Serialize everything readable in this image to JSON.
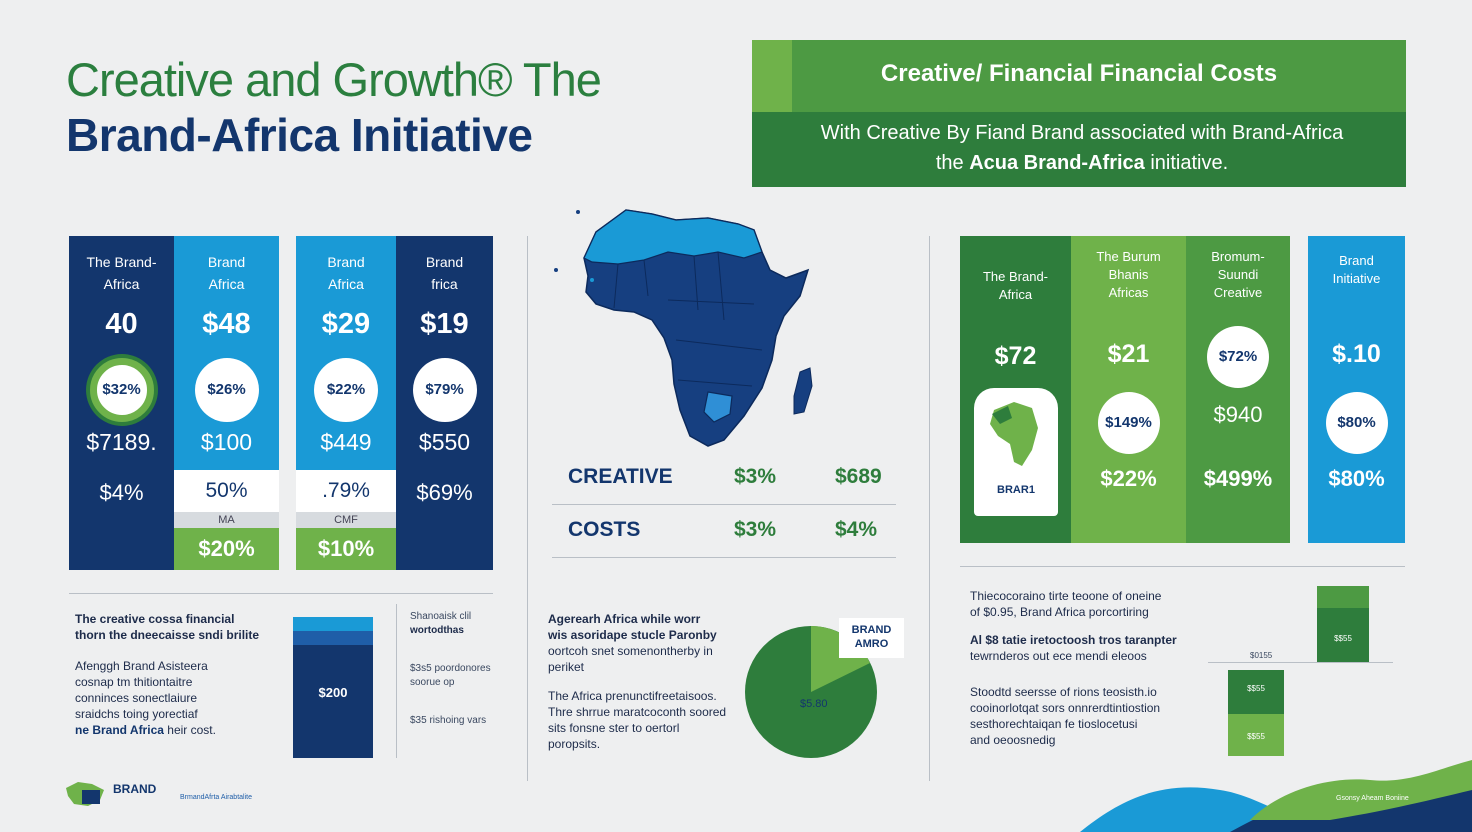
{
  "header": {
    "title_line1": "Creative and Growth® The",
    "title_line2": "Brand-Africa Initiative"
  },
  "banner": {
    "heading": "Creative/ Financial Financial Costs",
    "body_line1": "With Creative By Fiand Brand associated with Brand-Africa",
    "body_line2_pre": "the",
    "body_line2_bold": "Acua Brand-Africa",
    "body_line2_post": "initiative."
  },
  "left_columns": [
    {
      "label1": "The Brand-",
      "label2": "Africa",
      "big": "40",
      "circle": "$32%",
      "mid": "$7189.",
      "low": "$4%"
    },
    {
      "label1": "Brand",
      "label2": "Africa",
      "big": "$48",
      "circle": "$26%",
      "mid": "$100",
      "box_white": "50%",
      "box_grey": "MA",
      "box_green": "$20%"
    },
    {
      "label1": "Brand",
      "label2": "Africa",
      "big": "$29",
      "circle": "$22%",
      "mid": "$449",
      "box_white": ".79%",
      "box_grey": "CMF",
      "box_green": "$10%"
    },
    {
      "label1": "Brand",
      "label2": "frica",
      "big": "$19",
      "circle": "$79%",
      "mid": "$550",
      "low": "$69%"
    }
  ],
  "center_table": [
    {
      "label": "CREATIVE",
      "v1": "$3%",
      "v2": "$689"
    },
    {
      "label": "COSTS",
      "v1": "$3%",
      "v2": "$4%"
    }
  ],
  "right_columns": [
    {
      "label1": "The Brand-",
      "label2": "Africa",
      "big": "$72",
      "logo_text": "BRAR1"
    },
    {
      "label1": "The Burum",
      "label2": "Bhanis",
      "label3": "Africas",
      "big": "$21",
      "circle": "$149%",
      "low": "$22%"
    },
    {
      "label1": "Bromum-",
      "label2": "Suundi",
      "label3": "Creative",
      "circle": "$72%",
      "mid": "$940",
      "low": "$499%"
    },
    {
      "label1": "Brand",
      "label2": "Initiative",
      "big": "$.10",
      "circle": "$80%",
      "low": "$80%"
    }
  ],
  "bottom_left": {
    "heading1": "The creative cossa financial",
    "heading2": "thorn the dneecaisse sndi brilite",
    "para": [
      "Afenggh Brand Asisteera",
      "cosnap tm thitiontaitre",
      "conninces sonectlaiure",
      "sraidchs toing yorectiaf"
    ],
    "para_bold": "ne Brand Africa",
    "para_tail": "heir cost.",
    "bar_value": "$200",
    "side_notes": [
      "Shanoaisk clil",
      "wortodthas",
      "$3s5 poordonores",
      "soorue op",
      "$35 rishoing vars"
    ]
  },
  "bottom_center": {
    "para1": [
      "Agerearh Africa while worr",
      "wis asoridape stucle Paronby",
      "oortcoh snet somenontherby in",
      "periket"
    ],
    "para2": [
      "The Africa prenunctifreetaisoos.",
      "Thre shrrue maratcoconth soored",
      "sits fonsne ster to oertorl",
      "poropsits."
    ],
    "pie_label": "$5.80",
    "pie_badge1": "BRAND",
    "pie_badge2": "AMRO"
  },
  "bottom_right": {
    "para1": [
      "Thiecocoraino tirte teoone of oneine",
      "of $0.95, Brand Africa porcortiring"
    ],
    "para2": [
      "Al $8 tatie iretoctoosh tros taranpter",
      "tewrnderos out ece mendi eleoos"
    ],
    "para3": [
      "Stoodtd seersse of rions teosisth.io",
      "cooinorlotqat sors onnrerdtintiostion",
      "sesthorechtaiqan fe tioslocetusi",
      "and oeoosnedig"
    ],
    "bar1_label": "$$55",
    "bar1_axis": "$0155",
    "bar2_top": "$$55",
    "bar2_bottom": "$$55"
  },
  "footer": {
    "logo_text": "BRAND",
    "tagline": "BrmandAfrta Airabtalite",
    "right_note": "Gsonsy Aheam Boniine"
  },
  "colors": {
    "navy": "#13366d",
    "blue": "#1a9ad6",
    "green_dark": "#2e7d3c",
    "green_light": "#6fb24a"
  }
}
